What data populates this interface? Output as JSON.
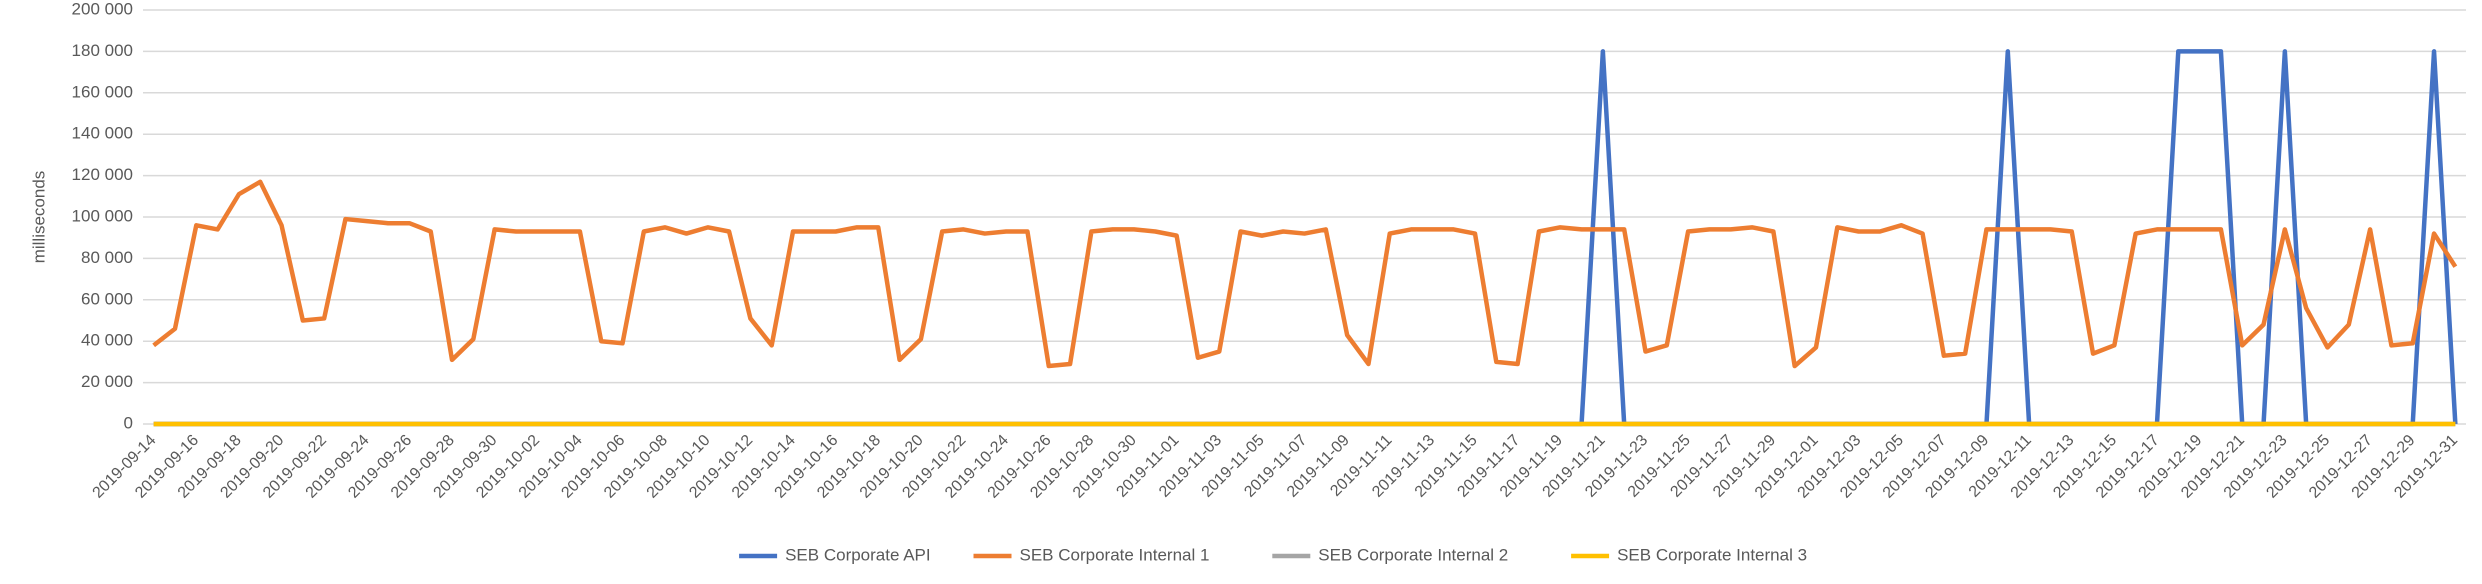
{
  "chart_data": {
    "type": "line",
    "y_label": "milliseconds",
    "categories": [
      "2019-09-14",
      null,
      "2019-09-16",
      null,
      "2019-09-18",
      null,
      "2019-09-20",
      null,
      "2019-09-22",
      null,
      "2019-09-24",
      null,
      "2019-09-26",
      null,
      "2019-09-28",
      null,
      "2019-09-30",
      null,
      "2019-10-02",
      null,
      "2019-10-04",
      null,
      "2019-10-06",
      null,
      "2019-10-08",
      null,
      "2019-10-10",
      null,
      "2019-10-12",
      null,
      "2019-10-14",
      null,
      "2019-10-16",
      null,
      "2019-10-18",
      null,
      "2019-10-20",
      null,
      "2019-10-22",
      null,
      "2019-10-24",
      null,
      "2019-10-26",
      null,
      "2019-10-28",
      null,
      "2019-10-30",
      null,
      "2019-11-01",
      null,
      "2019-11-03",
      null,
      "2019-11-05",
      null,
      "2019-11-07",
      null,
      "2019-11-09",
      null,
      "2019-11-11",
      null,
      "2019-11-13",
      null,
      "2019-11-15",
      null,
      "2019-11-17",
      null,
      "2019-11-19",
      null,
      "2019-11-21",
      null,
      "2019-11-23",
      null,
      "2019-11-25",
      null,
      "2019-11-27",
      null,
      "2019-11-29",
      null,
      "2019-12-01",
      null,
      "2019-12-03",
      null,
      "2019-12-05",
      null,
      "2019-12-07",
      null,
      "2019-12-09",
      null,
      "2019-12-11",
      null,
      "2019-12-13",
      null,
      "2019-12-15",
      null,
      "2019-12-17",
      null,
      "2019-12-19",
      null,
      "2019-12-21",
      null,
      "2019-12-23",
      null,
      "2019-12-25",
      null,
      "2019-12-27",
      null,
      "2019-12-29",
      null,
      "2019-12-31"
    ],
    "series": [
      {
        "name": "SEB Corporate API",
        "color": "#4472c4",
        "values": [
          0,
          0,
          0,
          0,
          0,
          0,
          0,
          0,
          0,
          0,
          0,
          0,
          0,
          0,
          0,
          0,
          0,
          0,
          0,
          0,
          0,
          0,
          0,
          0,
          0,
          0,
          0,
          0,
          0,
          0,
          0,
          0,
          0,
          0,
          0,
          0,
          0,
          0,
          0,
          0,
          0,
          0,
          0,
          0,
          0,
          0,
          0,
          0,
          0,
          0,
          0,
          0,
          0,
          0,
          0,
          0,
          0,
          0,
          0,
          0,
          0,
          0,
          0,
          0,
          0,
          0,
          0,
          0,
          180000,
          0,
          0,
          0,
          0,
          0,
          0,
          0,
          0,
          0,
          0,
          0,
          0,
          0,
          0,
          0,
          0,
          0,
          0,
          180000,
          0,
          0,
          0,
          0,
          0,
          0,
          0,
          180000,
          180000,
          180000,
          0,
          0,
          180000,
          0,
          0,
          0,
          0,
          0,
          0,
          180000,
          0
        ]
      },
      {
        "name": "SEB Corporate Internal 1",
        "color": "#ed7d31",
        "values": [
          38000,
          46000,
          96000,
          94000,
          111000,
          117000,
          96000,
          50000,
          51000,
          99000,
          98000,
          97000,
          97000,
          93000,
          31000,
          41000,
          94000,
          93000,
          93000,
          93000,
          93000,
          40000,
          39000,
          93000,
          95000,
          92000,
          95000,
          93000,
          51000,
          38000,
          93000,
          93000,
          93000,
          95000,
          95000,
          31000,
          41000,
          93000,
          94000,
          92000,
          93000,
          93000,
          28000,
          29000,
          93000,
          94000,
          94000,
          93000,
          91000,
          32000,
          35000,
          93000,
          91000,
          93000,
          92000,
          94000,
          43000,
          29000,
          92000,
          94000,
          94000,
          94000,
          92000,
          30000,
          29000,
          93000,
          95000,
          94000,
          94000,
          94000,
          35000,
          38000,
          93000,
          94000,
          94000,
          95000,
          93000,
          28000,
          37000,
          95000,
          93000,
          93000,
          96000,
          92000,
          33000,
          34000,
          94000,
          94000,
          94000,
          94000,
          93000,
          34000,
          38000,
          92000,
          94000,
          94000,
          94000,
          94000,
          38000,
          48000,
          94000,
          56000,
          37000,
          48000,
          94000,
          38000,
          39000,
          92000,
          76000
        ]
      },
      {
        "name": "SEB Corporate Internal 2",
        "color": "#a5a5a5",
        "values": [
          0,
          0,
          0,
          0,
          0,
          0,
          0,
          0,
          0,
          0,
          0,
          0,
          0,
          0,
          0,
          0,
          0,
          0,
          0,
          0,
          0,
          0,
          0,
          0,
          0,
          0,
          0,
          0,
          0,
          0,
          0,
          0,
          0,
          0,
          0,
          0,
          0,
          0,
          0,
          0,
          0,
          0,
          0,
          0,
          0,
          0,
          0,
          0,
          0,
          0,
          0,
          0,
          0,
          0,
          0,
          0,
          0,
          0,
          0,
          0,
          0,
          0,
          0,
          0,
          0,
          0,
          0,
          0,
          0,
          0,
          0,
          0,
          0,
          0,
          0,
          0,
          0,
          0,
          0,
          0,
          0,
          0,
          0,
          0,
          0,
          0,
          0,
          0,
          0,
          0,
          0,
          0,
          0,
          0,
          0,
          0,
          0,
          0,
          0,
          0,
          0,
          0,
          0,
          0,
          0,
          0,
          0,
          0,
          0
        ]
      },
      {
        "name": "SEB Corporate Internal 3",
        "color": "#ffc000",
        "values": [
          0,
          0,
          0,
          0,
          0,
          0,
          0,
          0,
          0,
          0,
          0,
          0,
          0,
          0,
          0,
          0,
          0,
          0,
          0,
          0,
          0,
          0,
          0,
          0,
          0,
          0,
          0,
          0,
          0,
          0,
          0,
          0,
          0,
          0,
          0,
          0,
          0,
          0,
          0,
          0,
          0,
          0,
          0,
          0,
          0,
          0,
          0,
          0,
          0,
          0,
          0,
          0,
          0,
          0,
          0,
          0,
          0,
          0,
          0,
          0,
          0,
          0,
          0,
          0,
          0,
          0,
          0,
          0,
          0,
          0,
          0,
          0,
          0,
          0,
          0,
          0,
          0,
          0,
          0,
          0,
          0,
          0,
          0,
          0,
          0,
          0,
          0,
          0,
          0,
          0,
          0,
          0,
          0,
          0,
          0,
          0,
          0,
          0,
          0,
          0,
          0,
          0,
          0,
          0,
          0,
          0,
          0,
          0,
          0
        ]
      }
    ],
    "ylim": [
      0,
      200000
    ],
    "yticks": [
      0,
      {
        "value": 20000,
        "label": "20 000"
      },
      {
        "value": 40000,
        "label": "40 000"
      },
      {
        "value": 60000,
        "label": "60 000"
      },
      {
        "value": 80000,
        "label": "80 000"
      },
      {
        "value": 100000,
        "label": "100 000"
      },
      {
        "value": 120000,
        "label": "120 000"
      },
      {
        "value": 140000,
        "label": "140 000"
      },
      {
        "value": 160000,
        "label": "160 000"
      },
      {
        "value": 180000,
        "label": "180 000"
      },
      {
        "value": 200000,
        "label": "200 000"
      }
    ],
    "grid": true,
    "legend": "bottom"
  }
}
